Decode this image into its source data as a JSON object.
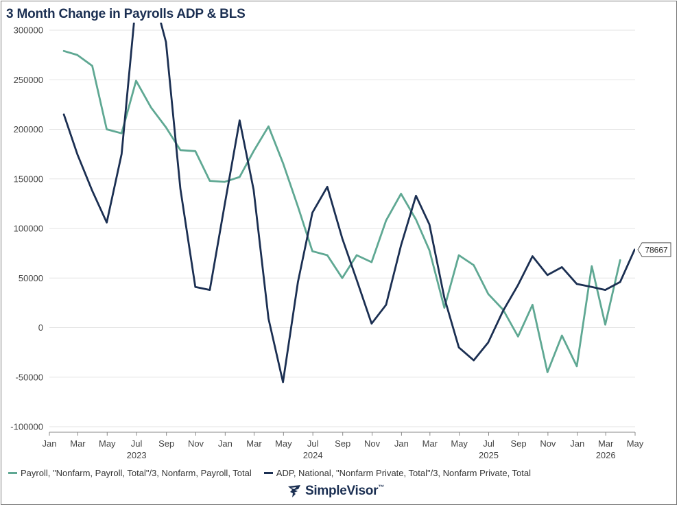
{
  "title": "3 Month Change in Payrolls ADP & BLS",
  "brand": {
    "name": "SimpleVisor",
    "tm": "™"
  },
  "colors": {
    "bls": "#5fa893",
    "adp": "#1b2f52",
    "grid": "#e3e3e3",
    "axis": "#888888"
  },
  "chart_data": {
    "type": "line",
    "ylim": [
      -100000,
      300000
    ],
    "yticks": [
      -100000,
      -50000,
      0,
      50000,
      100000,
      150000,
      200000,
      250000,
      300000
    ],
    "xlim": [
      "2023-01-01",
      "2026-05-01"
    ],
    "xticks": [
      {
        "date": "2023-01-01",
        "label": "Jan",
        "year": ""
      },
      {
        "date": "2023-03-01",
        "label": "Mar",
        "year": ""
      },
      {
        "date": "2023-05-01",
        "label": "May",
        "year": ""
      },
      {
        "date": "2023-07-01",
        "label": "Jul",
        "year": "2023"
      },
      {
        "date": "2023-09-01",
        "label": "Sep",
        "year": ""
      },
      {
        "date": "2023-11-01",
        "label": "Nov",
        "year": ""
      },
      {
        "date": "2024-01-01",
        "label": "Jan",
        "year": ""
      },
      {
        "date": "2024-03-01",
        "label": "Mar",
        "year": ""
      },
      {
        "date": "2024-05-01",
        "label": "May",
        "year": ""
      },
      {
        "date": "2024-07-01",
        "label": "Jul",
        "year": "2024"
      },
      {
        "date": "2024-09-01",
        "label": "Sep",
        "year": ""
      },
      {
        "date": "2024-11-01",
        "label": "Nov",
        "year": ""
      },
      {
        "date": "2025-01-01",
        "label": "Jan",
        "year": ""
      },
      {
        "date": "2025-03-01",
        "label": "Mar",
        "year": ""
      },
      {
        "date": "2025-05-01",
        "label": "May",
        "year": ""
      },
      {
        "date": "2025-07-01",
        "label": "Jul",
        "year": "2025"
      },
      {
        "date": "2025-09-01",
        "label": "Sep",
        "year": ""
      },
      {
        "date": "2025-11-01",
        "label": "Nov",
        "year": ""
      },
      {
        "date": "2026-01-01",
        "label": "Jan",
        "year": ""
      },
      {
        "date": "2026-03-01",
        "label": "Mar",
        "year": "2026"
      },
      {
        "date": "2026-05-01",
        "label": "May",
        "year": ""
      }
    ],
    "grid": true,
    "legend_position": "bottom",
    "last_value_label": "78667",
    "series": [
      {
        "name": "Payroll, \"Nonfarm, Payroll, Total\"/3, Nonfarm, Payroll, Total",
        "key": "bls",
        "points": [
          [
            "2023-01-31",
            279000
          ],
          [
            "2023-02-28",
            275000
          ],
          [
            "2023-03-31",
            264000
          ],
          [
            "2023-04-30",
            200000
          ],
          [
            "2023-05-31",
            196000
          ],
          [
            "2023-06-30",
            249000
          ],
          [
            "2023-07-31",
            222000
          ],
          [
            "2023-08-31",
            202000
          ],
          [
            "2023-09-30",
            179000
          ],
          [
            "2023-10-31",
            178000
          ],
          [
            "2023-11-30",
            148000
          ],
          [
            "2023-12-31",
            147000
          ],
          [
            "2024-01-31",
            152000
          ],
          [
            "2024-02-29",
            178000
          ],
          [
            "2024-03-31",
            203000
          ],
          [
            "2024-04-30",
            166000
          ],
          [
            "2024-05-31",
            122000
          ],
          [
            "2024-06-30",
            77000
          ],
          [
            "2024-07-31",
            73000
          ],
          [
            "2024-08-31",
            50000
          ],
          [
            "2024-09-30",
            73000
          ],
          [
            "2024-10-31",
            66000
          ],
          [
            "2024-11-30",
            108000
          ],
          [
            "2024-12-31",
            135000
          ],
          [
            "2025-01-31",
            109000
          ],
          [
            "2025-02-28",
            78000
          ],
          [
            "2025-03-31",
            20000
          ],
          [
            "2025-04-30",
            73000
          ],
          [
            "2025-05-31",
            63000
          ],
          [
            "2025-06-30",
            34000
          ],
          [
            "2025-07-31",
            18000
          ],
          [
            "2025-08-31",
            -9000
          ],
          [
            "2025-09-30",
            23000
          ],
          [
            "2025-10-31",
            -45000
          ],
          [
            "2025-11-30",
            -8000
          ],
          [
            "2025-12-31",
            -39000
          ],
          [
            "2026-01-31",
            62000
          ],
          [
            "2026-02-28",
            3000
          ],
          [
            "2026-03-31",
            68000
          ]
        ]
      },
      {
        "name": "ADP, National, \"Nonfarm Private, Total\"/3, Nonfarm Private, Total",
        "key": "adp",
        "points": [
          [
            "2023-01-31",
            215000
          ],
          [
            "2023-02-28",
            175000
          ],
          [
            "2023-03-31",
            138000
          ],
          [
            "2023-04-30",
            106000
          ],
          [
            "2023-05-31",
            175000
          ],
          [
            "2023-06-30",
            330000
          ],
          [
            "2023-07-31",
            345000
          ],
          [
            "2023-08-31",
            288000
          ],
          [
            "2023-09-30",
            140000
          ],
          [
            "2023-10-31",
            41000
          ],
          [
            "2023-11-30",
            38000
          ],
          [
            "2023-12-31",
            124000
          ],
          [
            "2024-01-31",
            209000
          ],
          [
            "2024-02-29",
            139000
          ],
          [
            "2024-03-31",
            9000
          ],
          [
            "2024-04-30",
            -55000
          ],
          [
            "2024-05-31",
            46000
          ],
          [
            "2024-06-30",
            116000
          ],
          [
            "2024-07-31",
            142000
          ],
          [
            "2024-08-31",
            90000
          ],
          [
            "2024-09-30",
            48000
          ],
          [
            "2024-10-31",
            4000
          ],
          [
            "2024-11-30",
            23000
          ],
          [
            "2024-12-31",
            83000
          ],
          [
            "2025-01-31",
            133000
          ],
          [
            "2025-02-28",
            104000
          ],
          [
            "2025-03-31",
            30000
          ],
          [
            "2025-04-30",
            -20000
          ],
          [
            "2025-05-31",
            -33000
          ],
          [
            "2025-06-30",
            -15000
          ],
          [
            "2025-07-31",
            17000
          ],
          [
            "2025-08-31",
            43000
          ],
          [
            "2025-09-30",
            72000
          ],
          [
            "2025-10-31",
            53000
          ],
          [
            "2025-11-30",
            61000
          ],
          [
            "2025-12-31",
            44000
          ],
          [
            "2026-01-31",
            41000
          ],
          [
            "2026-02-28",
            38000
          ],
          [
            "2026-03-31",
            46000
          ],
          [
            "2026-04-30",
            78667
          ]
        ]
      }
    ]
  }
}
